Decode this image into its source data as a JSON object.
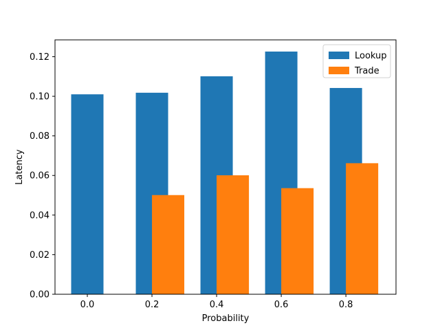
{
  "chart_data": {
    "type": "bar",
    "title": "",
    "xlabel": "Probability",
    "ylabel": "Latency",
    "x_ticks": [
      "0.0",
      "0.2",
      "0.4",
      "0.6",
      "0.8"
    ],
    "xlim": [
      -0.1,
      0.955
    ],
    "ylim": [
      0.0,
      0.1285
    ],
    "y_ticks": [
      "0.00",
      "0.02",
      "0.04",
      "0.06",
      "0.08",
      "0.10",
      "0.12"
    ],
    "bar_width": 0.1,
    "grid": false,
    "legend_position": "top-right",
    "series": [
      {
        "name": "Lookup",
        "color": "#1f77b4",
        "x": [
          0.0,
          0.2,
          0.4,
          0.6,
          0.8
        ],
        "values": [
          0.101,
          0.1018,
          0.1101,
          0.1226,
          0.1042
        ]
      },
      {
        "name": "Trade",
        "color": "#ff7f0e",
        "x": [
          0.25,
          0.45,
          0.65,
          0.85
        ],
        "values": [
          0.0501,
          0.0601,
          0.0536,
          0.0662
        ]
      }
    ]
  }
}
